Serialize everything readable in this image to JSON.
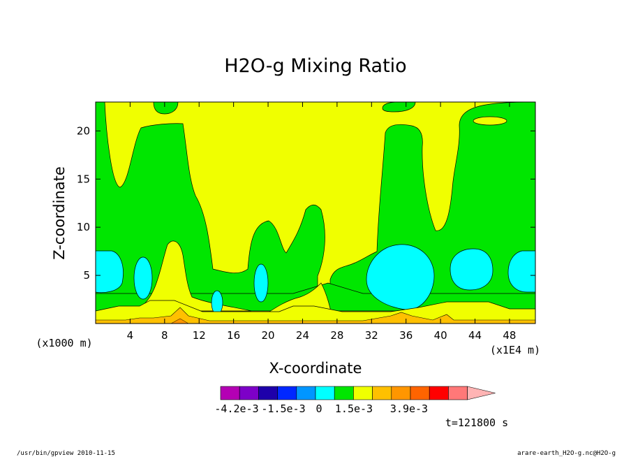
{
  "chart_data": {
    "type": "heatmap",
    "title": "H2O-g Mixing Ratio",
    "xlabel": "X-coordinate",
    "ylabel": "Z-coordinate",
    "x_unit_label": "(x1E4 m)",
    "y_unit_label": "(x1000 m)",
    "xlim": [
      0,
      51
    ],
    "ylim": [
      0,
      23
    ],
    "x_ticks": [
      "4",
      "8",
      "12",
      "16",
      "20",
      "24",
      "28",
      "32",
      "36",
      "40",
      "44",
      "48"
    ],
    "y_ticks": [
      "5",
      "10",
      "15",
      "20"
    ],
    "x_tick_values": [
      4,
      8,
      12,
      16,
      20,
      24,
      28,
      32,
      36,
      40,
      44,
      48
    ],
    "y_tick_values": [
      5,
      10,
      15,
      20
    ],
    "fields": [
      {
        "level": "yellow",
        "color": "#f0ff00",
        "region": "background"
      },
      {
        "level": "green",
        "color": "#00e600",
        "region": "plumes"
      },
      {
        "level": "cyan",
        "color": "#00ffff",
        "region": "cells"
      },
      {
        "level": "orange",
        "color": "#ffc000",
        "region": "near-surface"
      }
    ],
    "colorbar": {
      "colors": [
        "#b400b4",
        "#7d00c8",
        "#1e00aa",
        "#0028ff",
        "#0096ff",
        "#00ffff",
        "#00e600",
        "#f0ff00",
        "#ffc000",
        "#ff9600",
        "#ff6400",
        "#ff0000",
        "#ff7878",
        "#ffb4b4"
      ],
      "labels": [
        "-4.2e-3",
        "-1.5e-3",
        "0",
        "1.5e-3",
        "3.9e-3"
      ]
    },
    "time_label": "t=121800 s"
  },
  "footer": {
    "left": "/usr/bin/gpview  2010-11-15",
    "right": "arare-earth_H2O-g.nc@H2O-g"
  }
}
